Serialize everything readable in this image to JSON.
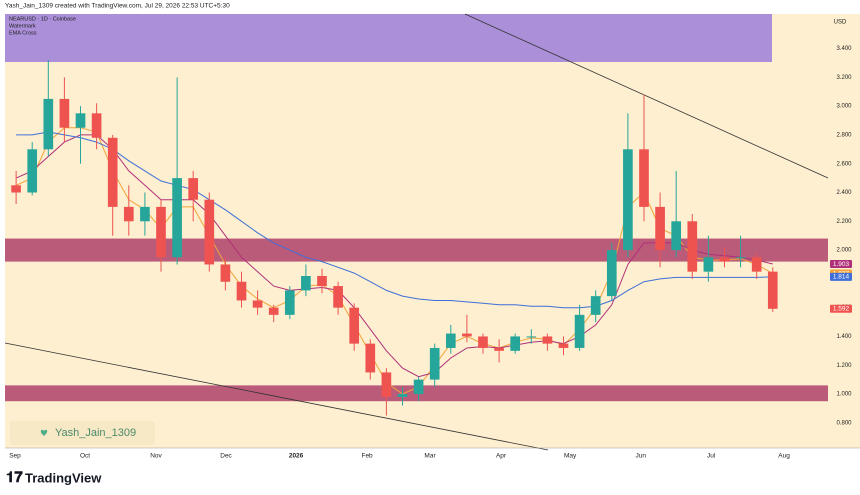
{
  "header": {
    "credit": "Yash_Jain_1309 created with TradingView.com, Jul 29, 2026 22:53 UTC+5:30"
  },
  "legend_box": {
    "symbol": "NEARUSD · 1D · Coinbase",
    "line2": "Watermark",
    "line3": "EMA Cross"
  },
  "watermark": "Yash_Jain_1309",
  "footer": {
    "brand": "TradingView"
  },
  "chart_data": {
    "type": "candlestick",
    "currency": "USD",
    "up_color": "#26a69a",
    "down_color": "#ef5350",
    "categories": [
      null,
      null,
      null,
      null,
      null,
      null,
      null,
      null,
      null,
      null,
      null,
      null,
      null,
      null,
      null,
      null,
      null,
      null,
      null,
      null,
      null,
      null,
      null,
      null,
      null,
      null,
      null,
      null,
      null,
      null,
      null,
      null,
      null,
      null,
      null,
      null,
      null,
      null,
      null,
      null,
      null,
      null,
      null,
      null,
      null,
      null,
      null,
      null
    ],
    "open": [
      2.45,
      2.4,
      2.7,
      3.05,
      2.85,
      2.95,
      2.78,
      2.3,
      2.2,
      2.3,
      1.95,
      2.5,
      2.35,
      1.9,
      1.78,
      1.65,
      1.6,
      1.55,
      1.72,
      1.82,
      1.75,
      1.6,
      1.35,
      1.15,
      0.98,
      1.0,
      1.1,
      1.32,
      1.42,
      1.4,
      1.32,
      1.3,
      1.4,
      1.4,
      1.35,
      1.32,
      1.55,
      1.68,
      2.0,
      2.7,
      2.3,
      2.0,
      2.2,
      1.85,
      1.95,
      1.95,
      1.95,
      1.85
    ],
    "high": [
      2.55,
      2.75,
      3.32,
      3.2,
      3.0,
      3.02,
      2.8,
      2.45,
      2.4,
      2.35,
      3.2,
      2.55,
      2.4,
      1.95,
      1.85,
      1.72,
      1.62,
      1.75,
      1.9,
      1.87,
      1.78,
      1.63,
      1.38,
      1.18,
      1.05,
      1.12,
      1.35,
      1.48,
      1.55,
      1.42,
      1.38,
      1.42,
      1.45,
      1.42,
      1.4,
      1.62,
      1.72,
      2.05,
      2.95,
      3.08,
      2.4,
      2.55,
      2.25,
      2.1,
      2.02,
      2.1,
      1.98,
      1.88
    ],
    "low": [
      2.32,
      2.38,
      2.65,
      2.75,
      2.6,
      2.7,
      2.1,
      2.1,
      2.1,
      1.85,
      1.9,
      2.2,
      1.85,
      1.72,
      1.6,
      1.55,
      1.5,
      1.52,
      1.68,
      1.7,
      1.55,
      1.3,
      1.1,
      0.85,
      0.92,
      0.95,
      1.05,
      1.28,
      1.36,
      1.28,
      1.22,
      1.28,
      1.35,
      1.3,
      1.27,
      1.3,
      1.5,
      1.65,
      1.95,
      2.2,
      1.88,
      1.95,
      1.8,
      1.78,
      1.88,
      1.88,
      1.8,
      1.57
    ],
    "close": [
      2.4,
      2.7,
      3.05,
      2.85,
      2.95,
      2.78,
      2.3,
      2.2,
      2.3,
      1.95,
      2.5,
      2.35,
      1.9,
      1.78,
      1.65,
      1.6,
      1.55,
      1.72,
      1.82,
      1.75,
      1.6,
      1.35,
      1.15,
      0.98,
      1.0,
      1.1,
      1.32,
      1.42,
      1.4,
      1.32,
      1.3,
      1.4,
      1.4,
      1.35,
      1.32,
      1.55,
      1.68,
      2.0,
      2.7,
      2.3,
      2.0,
      2.2,
      1.85,
      1.95,
      1.92,
      1.95,
      1.85,
      1.592
    ],
    "series": [
      {
        "color": "#f2a33a",
        "values": [
          2.45,
          2.5,
          2.75,
          2.85,
          2.85,
          2.82,
          2.55,
          2.35,
          2.28,
          2.15,
          2.3,
          2.3,
          2.1,
          1.9,
          1.75,
          1.66,
          1.6,
          1.65,
          1.75,
          1.76,
          1.68,
          1.48,
          1.28,
          1.08,
          1.0,
          1.05,
          1.2,
          1.35,
          1.4,
          1.35,
          1.32,
          1.36,
          1.39,
          1.38,
          1.34,
          1.45,
          1.6,
          1.85,
          2.3,
          2.4,
          2.15,
          2.1,
          1.95,
          1.93,
          1.93,
          1.94,
          1.9,
          1.837
        ]
      },
      {
        "color": "#b0307a",
        "values": [
          2.5,
          2.55,
          2.65,
          2.75,
          2.8,
          2.8,
          2.7,
          2.55,
          2.45,
          2.35,
          2.35,
          2.35,
          2.25,
          2.1,
          1.95,
          1.85,
          1.75,
          1.72,
          1.73,
          1.74,
          1.72,
          1.6,
          1.45,
          1.3,
          1.18,
          1.12,
          1.15,
          1.25,
          1.32,
          1.33,
          1.32,
          1.34,
          1.36,
          1.37,
          1.35,
          1.4,
          1.48,
          1.62,
          1.9,
          2.05,
          2.05,
          2.05,
          2.0,
          1.97,
          1.96,
          1.95,
          1.93,
          1.903
        ]
      },
      {
        "color": "#3f6fd8",
        "values": [
          2.8,
          2.8,
          2.82,
          2.8,
          2.78,
          2.75,
          2.7,
          2.62,
          2.55,
          2.48,
          2.45,
          2.42,
          2.35,
          2.28,
          2.2,
          2.12,
          2.05,
          2.0,
          1.95,
          1.92,
          1.88,
          1.84,
          1.78,
          1.72,
          1.68,
          1.66,
          1.65,
          1.65,
          1.64,
          1.63,
          1.62,
          1.62,
          1.61,
          1.61,
          1.6,
          1.6,
          1.61,
          1.65,
          1.72,
          1.78,
          1.8,
          1.81,
          1.81,
          1.81,
          1.81,
          1.81,
          1.81,
          1.814
        ]
      }
    ],
    "zones": [
      [
        1.92,
        2.08
      ],
      [
        0.95,
        1.06
      ]
    ],
    "zone_color": "#b24a70",
    "xlim": [
      -0.69,
      50.43
    ],
    "xticks": [
      {
        "value": -0.07,
        "label": "Sep"
      },
      {
        "value": 4.28,
        "label": "Oct"
      },
      {
        "value": 8.69,
        "label": "Nov"
      },
      {
        "value": 13.04,
        "label": "Dec"
      },
      {
        "value": 17.39,
        "label": "2026"
      },
      {
        "value": 21.8,
        "label": "Feb"
      },
      {
        "value": 25.71,
        "label": "Mar"
      },
      {
        "value": 30.12,
        "label": "Apr"
      },
      {
        "value": 34.41,
        "label": "May"
      },
      {
        "value": 38.8,
        "label": "Jun"
      },
      {
        "value": 43.17,
        "label": "Jul"
      },
      {
        "value": 47.7,
        "label": "Aug"
      }
    ],
    "ylim": [
      0.625,
      3.64
    ],
    "yticks": [
      {
        "value": 0.8,
        "label": "0.800"
      },
      {
        "value": 1.0,
        "label": "1.000"
      },
      {
        "value": 1.2,
        "label": "1.200"
      },
      {
        "value": 1.4,
        "label": "1.400"
      },
      {
        "value": 1.6,
        "label": "1.600"
      },
      {
        "value": 1.8,
        "label": "1.800"
      },
      {
        "value": 2.0,
        "label": "2.000"
      },
      {
        "value": 2.2,
        "label": "2.200"
      },
      {
        "value": 2.4,
        "label": "2.400"
      },
      {
        "value": 2.6,
        "label": "2.600"
      },
      {
        "value": 2.8,
        "label": "2.800"
      },
      {
        "value": 3.0,
        "label": "3.000"
      },
      {
        "value": 3.2,
        "label": "3.200"
      },
      {
        "value": 3.4,
        "label": "3.400"
      }
    ],
    "grid": false
  }
}
